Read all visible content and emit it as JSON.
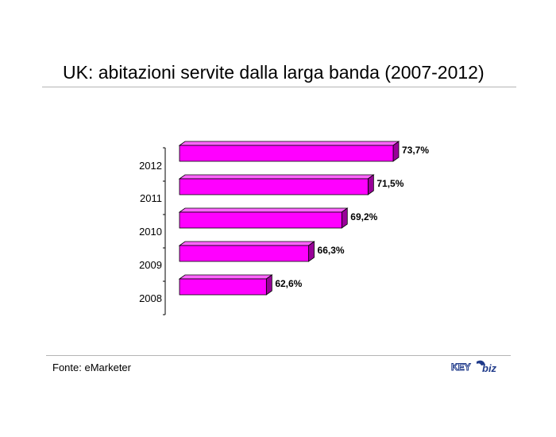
{
  "title": "UK: abitazioni servite dalla larga banda (2007-2012)",
  "source": "Fonte: eMarketer",
  "logo": {
    "text_left": "KEY",
    "text_right": "biz",
    "digit": "4"
  },
  "colors": {
    "bar_front": "#ff00ff",
    "bar_top": "#ff66ff",
    "bar_side": "#990099",
    "bar_outline": "#000000",
    "rule": "#b5b5b5",
    "logo_blue": "#1f3a8a"
  },
  "chart_data": {
    "type": "bar",
    "orientation": "horizontal",
    "style": "3d",
    "categories": [
      "2012",
      "2011",
      "2010",
      "2009",
      "2008"
    ],
    "values": [
      73.7,
      71.5,
      69.2,
      66.3,
      62.6
    ],
    "data_labels": [
      "73,7%",
      "71,5%",
      "69,2%",
      "66,3%",
      "62,6%"
    ],
    "title": "UK: abitazioni servite dalla larga banda (2007-2012)",
    "xlabel": "",
    "ylabel": "",
    "xlim": [
      55,
      75
    ],
    "grid": false,
    "legend": "none"
  }
}
